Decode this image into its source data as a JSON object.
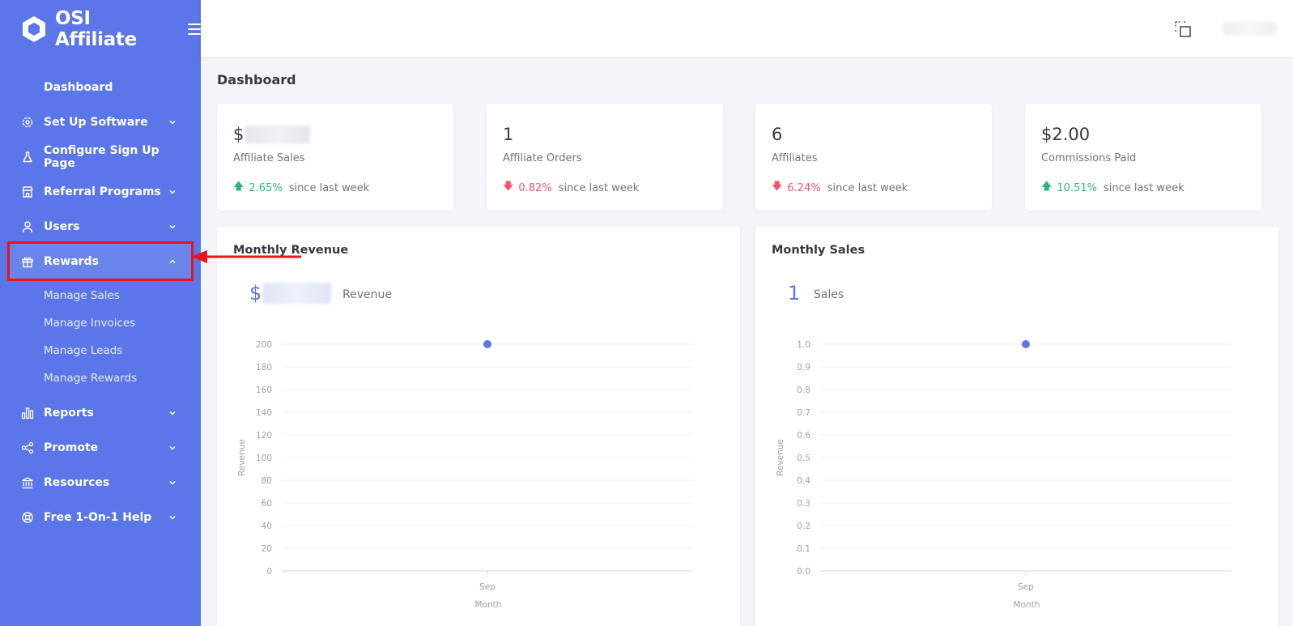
{
  "brand": {
    "name": "OSI Affiliate"
  },
  "sidebar": {
    "items": [
      {
        "label": "Dashboard",
        "icon": "none",
        "chevron": false
      },
      {
        "label": "Set Up Software",
        "icon": "gear-icon",
        "chevron": "down"
      },
      {
        "label": "Configure Sign Up Page",
        "icon": "flask-icon",
        "chevron": false
      },
      {
        "label": "Referral Programs",
        "icon": "store-icon",
        "chevron": "down"
      },
      {
        "label": "Users",
        "icon": "user-icon",
        "chevron": "down"
      },
      {
        "label": "Rewards",
        "icon": "gift-icon",
        "chevron": "up",
        "active": true
      },
      {
        "label": "Reports",
        "icon": "bar-chart-icon",
        "chevron": "down"
      },
      {
        "label": "Promote",
        "icon": "share-icon",
        "chevron": "down"
      },
      {
        "label": "Resources",
        "icon": "bank-icon",
        "chevron": "down"
      },
      {
        "label": "Free 1-On-1 Help",
        "icon": "lifebuoy-icon",
        "chevron": "down"
      }
    ],
    "rewards_sub": [
      "Manage Sales",
      "Manage Invoices",
      "Manage Leads",
      "Manage Rewards"
    ]
  },
  "page": {
    "title": "Dashboard"
  },
  "stats": [
    {
      "value": "$",
      "value_blurred": true,
      "name": "Affiliate Sales",
      "direction": "up",
      "pct": "2.65%",
      "since": "since last week"
    },
    {
      "value": "1",
      "name": "Affiliate Orders",
      "direction": "down",
      "pct": "0.82%",
      "since": "since last week"
    },
    {
      "value": "6",
      "name": "Affiliates",
      "direction": "down",
      "pct": "6.24%",
      "since": "since last week"
    },
    {
      "value": "$2.00",
      "name": "Commissions Paid",
      "direction": "up",
      "pct": "10.51%",
      "since": "since last week"
    }
  ],
  "panels": {
    "revenue": {
      "title": "Monthly Revenue",
      "big_value": "$",
      "big_label": "Revenue"
    },
    "sales": {
      "title": "Monthly Sales",
      "big_value": "1",
      "big_label": "Sales"
    }
  },
  "colors": {
    "sidebar": "#5b76e8",
    "accent": "#5b76e8",
    "up": "#2fb380",
    "down": "#f1556c",
    "annotation": "#e8141c"
  },
  "chart_data": [
    {
      "type": "scatter",
      "title": "Monthly Revenue",
      "xlabel": "Month",
      "ylabel": "Revenue",
      "categories": [
        "Sep"
      ],
      "values": [
        200
      ],
      "ylim": [
        0,
        200
      ],
      "yticks": [
        "200",
        "180",
        "160",
        "140",
        "120",
        "100",
        "80",
        "60",
        "40",
        "20",
        "0"
      ],
      "grid": true
    },
    {
      "type": "scatter",
      "title": "Monthly Sales",
      "xlabel": "Month",
      "ylabel": "Revenue",
      "categories": [
        "Sep"
      ],
      "values": [
        1.0
      ],
      "ylim": [
        0,
        1.0
      ],
      "yticks": [
        "1.0",
        "0.9",
        "0.8",
        "0.7",
        "0.6",
        "0.5",
        "0.4",
        "0.3",
        "0.2",
        "0.1",
        "0.0"
      ],
      "grid": true
    }
  ]
}
